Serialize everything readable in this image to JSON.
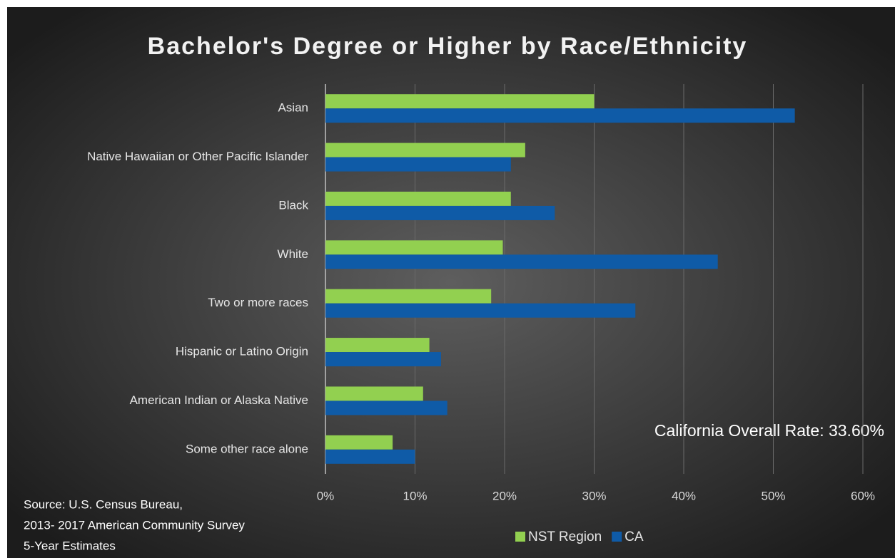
{
  "chart_data": {
    "type": "hbar",
    "title": "Bachelor's Degree or Higher by Race/Ethnicity",
    "categories": [
      "Asian",
      "Native Hawaiian or Other Pacific Islander",
      "Black",
      "White",
      "Two or more races",
      "Hispanic or Latino Origin",
      "American Indian or Alaska Native",
      "Some other race alone"
    ],
    "series": [
      {
        "name": "NST Region",
        "color": "#92d050",
        "values": [
          30.0,
          22.3,
          20.7,
          19.8,
          18.5,
          11.6,
          10.9,
          7.5
        ]
      },
      {
        "name": "CA",
        "color": "#0f5ba7",
        "values": [
          52.4,
          20.7,
          25.6,
          43.8,
          34.6,
          12.9,
          13.6,
          10.0
        ]
      }
    ],
    "xlim": [
      0,
      60
    ],
    "xticks": [
      {
        "value": 0,
        "label": "0%"
      },
      {
        "value": 10,
        "label": "10%"
      },
      {
        "value": 20,
        "label": "20%"
      },
      {
        "value": 30,
        "label": "30%"
      },
      {
        "value": 40,
        "label": "40%"
      },
      {
        "value": 50,
        "label": "50%"
      },
      {
        "value": 60,
        "label": "60%"
      }
    ],
    "grid": true,
    "legend": "bottom",
    "annotation": "California Overall Rate:  33.60%",
    "source": [
      "Source: U.S. Census Bureau,",
      "2013- 2017 American Community Survey",
      "5-Year Estimates"
    ]
  }
}
